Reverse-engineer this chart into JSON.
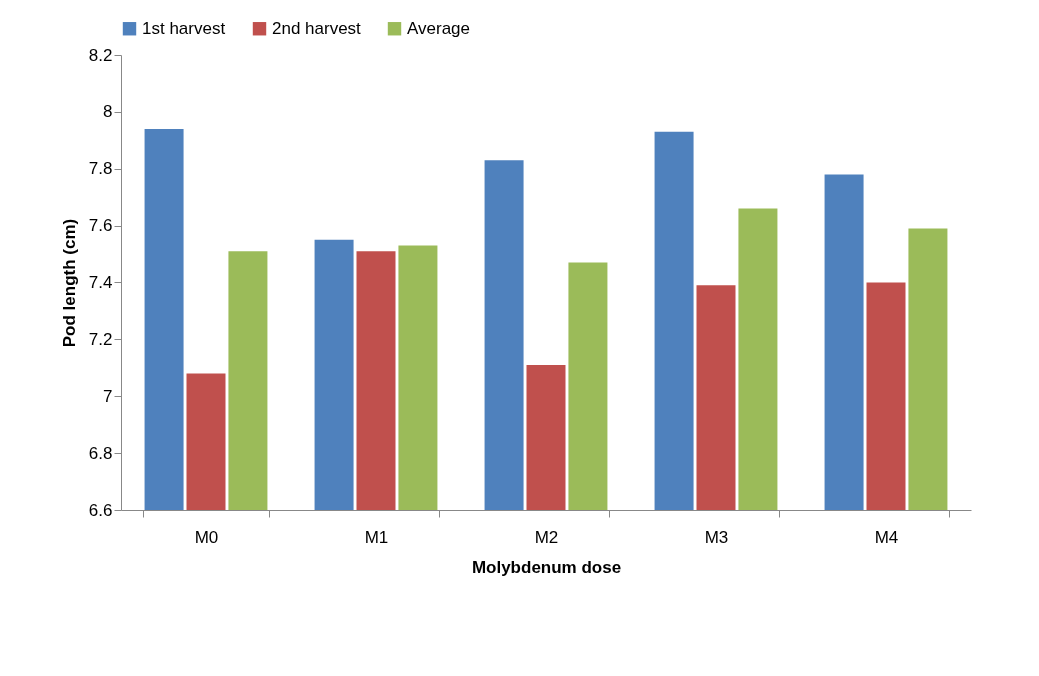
{
  "chart_data": {
    "type": "bar",
    "xlabel": "Molybdenum dose",
    "ylabel": "Pod length (cm)",
    "categories": [
      "M0",
      "M1",
      "M2",
      "M3",
      "M4"
    ],
    "series": [
      {
        "name": "1st harvest",
        "color": "#4f81bd",
        "values": [
          7.94,
          7.55,
          7.83,
          7.93,
          7.78
        ]
      },
      {
        "name": "2nd harvest",
        "color": "#c0504d",
        "values": [
          7.08,
          7.51,
          7.11,
          7.39,
          7.4
        ]
      },
      {
        "name": "Average",
        "color": "#9bbb59",
        "values": [
          7.51,
          7.53,
          7.47,
          7.66,
          7.59
        ]
      }
    ],
    "ylim": [
      6.6,
      8.2
    ],
    "yticks": [
      6.6,
      6.8,
      7,
      7.2,
      7.4,
      7.6,
      7.8,
      8,
      8.2
    ],
    "grid": false,
    "legend": "top"
  }
}
